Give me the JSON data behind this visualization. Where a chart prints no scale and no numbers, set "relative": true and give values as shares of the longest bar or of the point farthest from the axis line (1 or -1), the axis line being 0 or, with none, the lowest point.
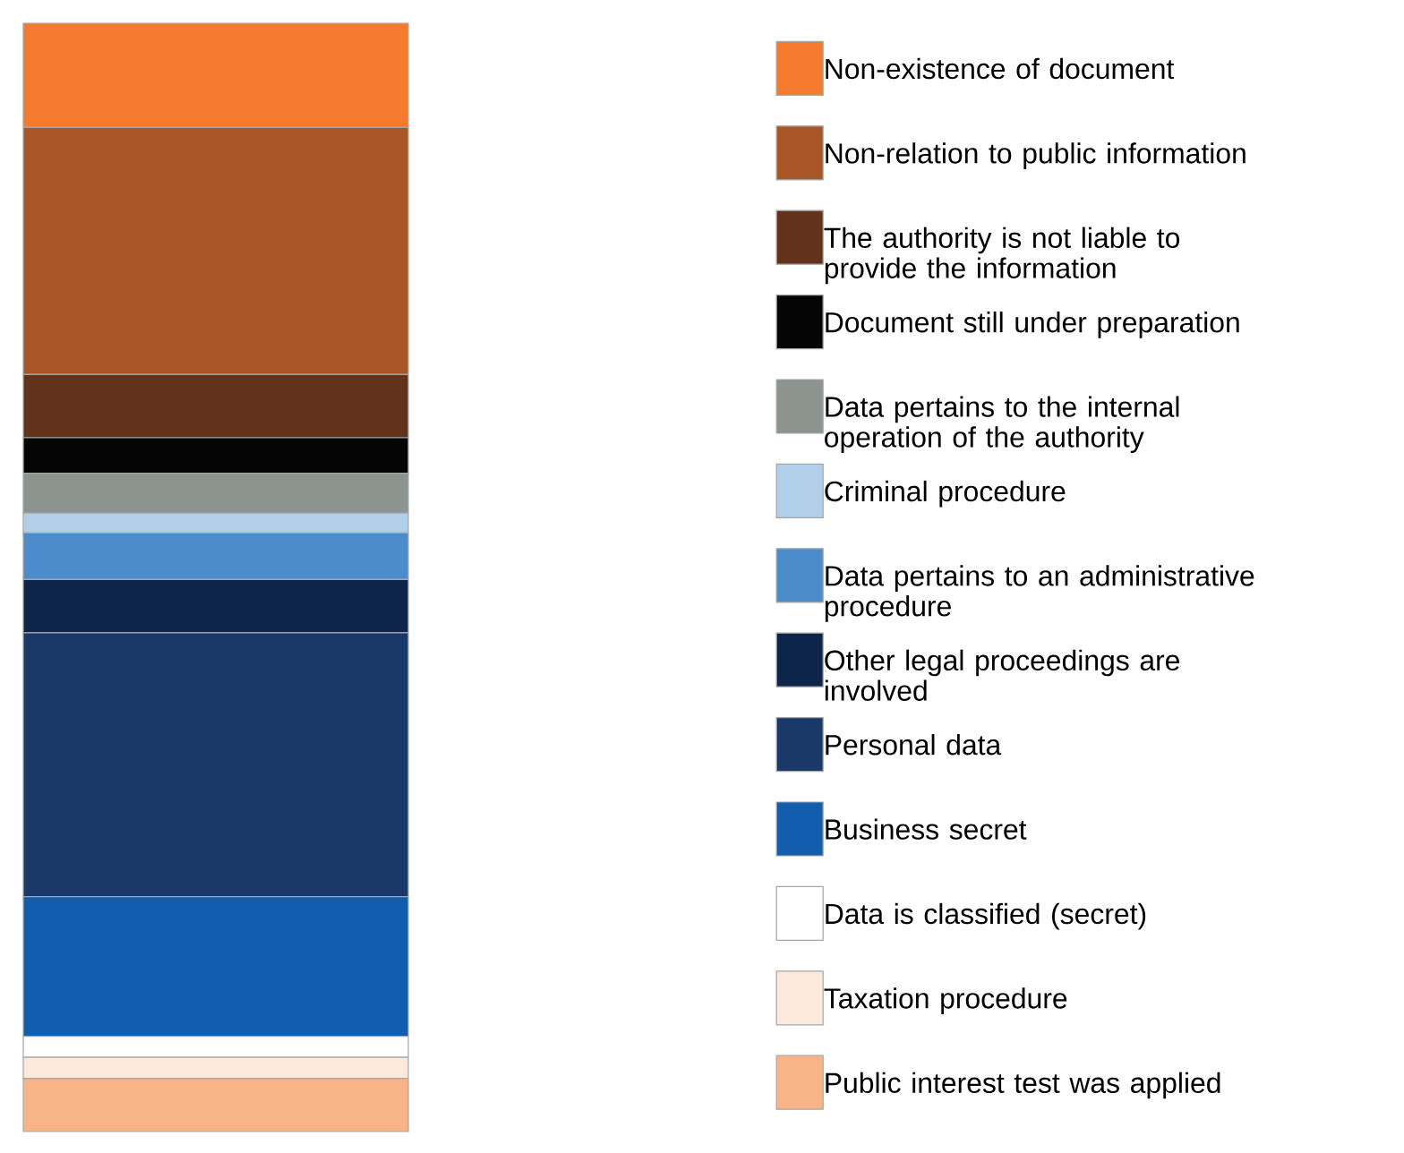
{
  "chart_data": {
    "type": "bar",
    "stacked": true,
    "relative": true,
    "legend": "right",
    "categories": [
      null
    ],
    "series": [
      {
        "name": "Public interest test was applied",
        "color": "#f8b487",
        "values": [
          0.048
        ]
      },
      {
        "name": "Taxation procedure",
        "color": "#fde8dc",
        "values": [
          0.019
        ]
      },
      {
        "name": "Data is classified (secret)",
        "color": "#ffffff",
        "values": [
          0.019
        ]
      },
      {
        "name": "Business secret",
        "color": "#125eac",
        "values": [
          0.126
        ]
      },
      {
        "name": "Personal data",
        "color": "#1a3868",
        "values": [
          0.238
        ]
      },
      {
        "name": "Other legal proceedings are involved",
        "color": "#0c2549",
        "values": [
          0.048
        ]
      },
      {
        "name": "Data pertains to an administrative procedure",
        "color": "#4b8ccb",
        "values": [
          0.042
        ]
      },
      {
        "name": "Criminal procedure",
        "color": "#b0cfe8",
        "values": [
          0.018
        ]
      },
      {
        "name": "Data pertains to the internal operation of the authority",
        "color": "#8c9490",
        "values": [
          0.036
        ]
      },
      {
        "name": "Document still under preparation",
        "color": "#050505",
        "values": [
          0.032
        ]
      },
      {
        "name": "The authority is not liable to provide the information",
        "color": "#62321a",
        "values": [
          0.057
        ]
      },
      {
        "name": "Non-relation to public information",
        "color": "#a85626",
        "values": [
          0.223
        ]
      },
      {
        "name": "Non-existence of document",
        "color": "#f47b2e",
        "values": [
          0.094
        ]
      }
    ]
  }
}
